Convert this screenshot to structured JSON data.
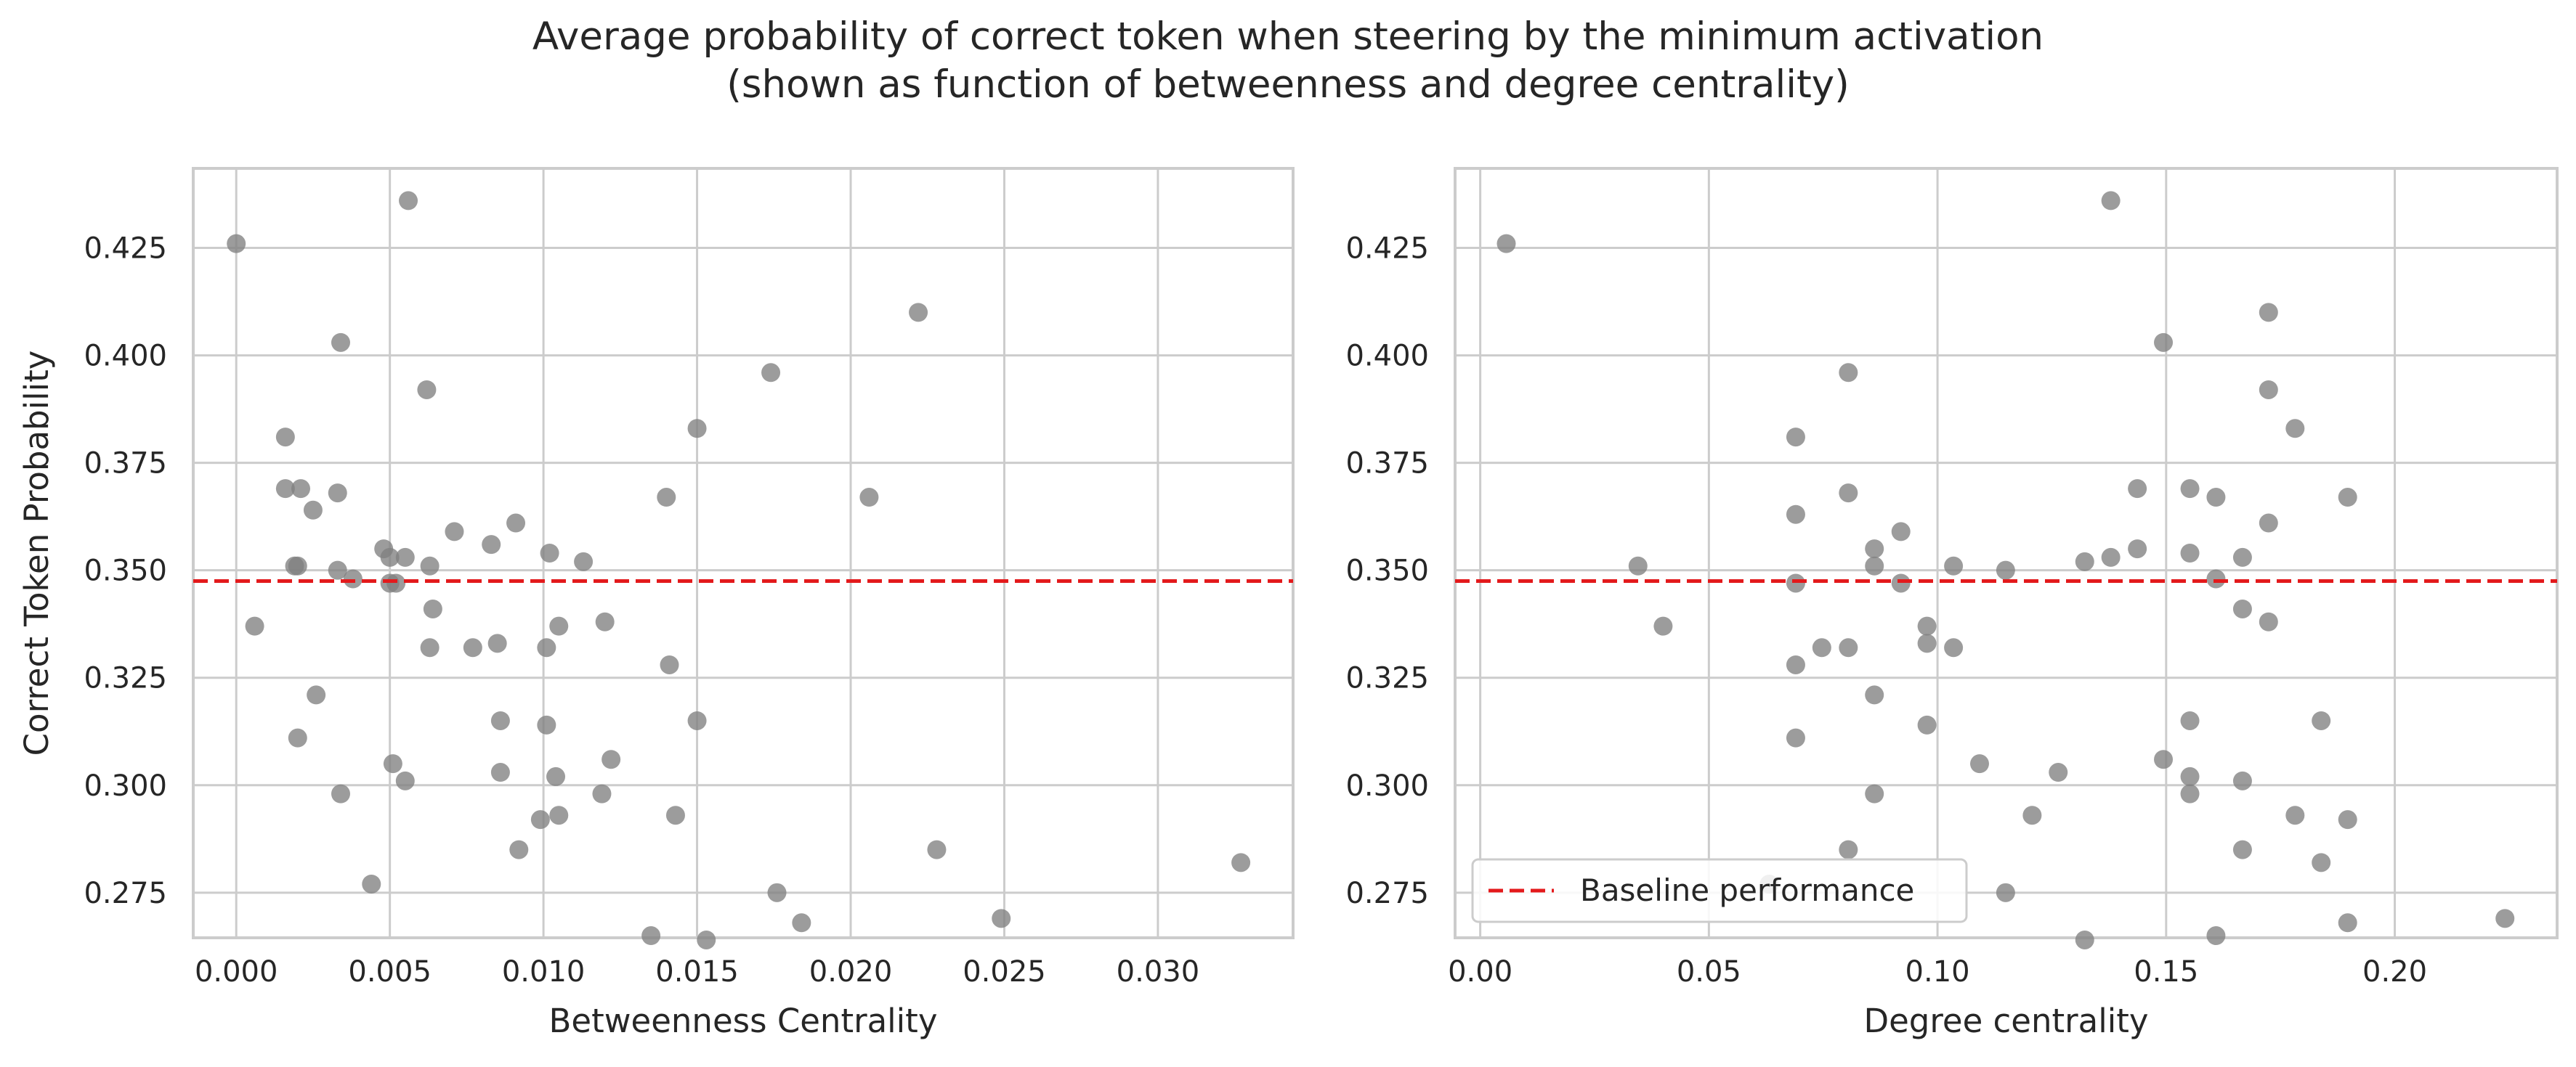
{
  "figure": {
    "title_line1": "Average probability of correct token when steering by the minimum activation",
    "title_line2": "(shown as function of betweenness and degree centrality)"
  },
  "colors": {
    "points": "#808080",
    "baseline": "#e31a1c",
    "grid": "#cccccc",
    "frame": "#cccccc"
  },
  "chart_data": [
    {
      "type": "scatter",
      "xlabel": "Betweenness Centrality",
      "ylabel": "Correct Token Probability",
      "xlim": [
        -0.0014,
        0.0344
      ],
      "ylim": [
        0.2645,
        0.4435
      ],
      "xticks": [
        "0.000",
        "0.005",
        "0.010",
        "0.015",
        "0.020",
        "0.025",
        "0.030"
      ],
      "xtick_values": [
        0.0,
        0.005,
        0.01,
        0.015,
        0.02,
        0.025,
        0.03
      ],
      "yticks": [
        "0.275",
        "0.300",
        "0.325",
        "0.350",
        "0.375",
        "0.400",
        "0.425"
      ],
      "ytick_values": [
        0.275,
        0.3,
        0.325,
        0.35,
        0.375,
        0.4,
        0.425
      ],
      "grid": true,
      "baseline": 0.3475,
      "points": [
        {
          "x": 0.0,
          "y": 0.426
        },
        {
          "x": 0.0006,
          "y": 0.337
        },
        {
          "x": 0.0016,
          "y": 0.381
        },
        {
          "x": 0.0016,
          "y": 0.369
        },
        {
          "x": 0.0019,
          "y": 0.351
        },
        {
          "x": 0.002,
          "y": 0.351
        },
        {
          "x": 0.0021,
          "y": 0.369
        },
        {
          "x": 0.002,
          "y": 0.311
        },
        {
          "x": 0.0025,
          "y": 0.364
        },
        {
          "x": 0.0026,
          "y": 0.321
        },
        {
          "x": 0.0033,
          "y": 0.368
        },
        {
          "x": 0.0033,
          "y": 0.35
        },
        {
          "x": 0.0034,
          "y": 0.403
        },
        {
          "x": 0.0034,
          "y": 0.298
        },
        {
          "x": 0.0038,
          "y": 0.348
        },
        {
          "x": 0.0044,
          "y": 0.277
        },
        {
          "x": 0.0048,
          "y": 0.355
        },
        {
          "x": 0.005,
          "y": 0.353
        },
        {
          "x": 0.005,
          "y": 0.347
        },
        {
          "x": 0.0052,
          "y": 0.347
        },
        {
          "x": 0.0051,
          "y": 0.305
        },
        {
          "x": 0.0055,
          "y": 0.353
        },
        {
          "x": 0.0055,
          "y": 0.301
        },
        {
          "x": 0.0056,
          "y": 0.436
        },
        {
          "x": 0.0062,
          "y": 0.392
        },
        {
          "x": 0.0063,
          "y": 0.351
        },
        {
          "x": 0.0064,
          "y": 0.341
        },
        {
          "x": 0.0063,
          "y": 0.332
        },
        {
          "x": 0.0071,
          "y": 0.359
        },
        {
          "x": 0.0077,
          "y": 0.332
        },
        {
          "x": 0.0083,
          "y": 0.356
        },
        {
          "x": 0.0085,
          "y": 0.333
        },
        {
          "x": 0.0086,
          "y": 0.315
        },
        {
          "x": 0.0086,
          "y": 0.303
        },
        {
          "x": 0.0091,
          "y": 0.361
        },
        {
          "x": 0.0092,
          "y": 0.285
        },
        {
          "x": 0.0099,
          "y": 0.292
        },
        {
          "x": 0.0101,
          "y": 0.332
        },
        {
          "x": 0.0101,
          "y": 0.314
        },
        {
          "x": 0.0102,
          "y": 0.354
        },
        {
          "x": 0.0104,
          "y": 0.302
        },
        {
          "x": 0.0105,
          "y": 0.337
        },
        {
          "x": 0.0105,
          "y": 0.293
        },
        {
          "x": 0.0113,
          "y": 0.352
        },
        {
          "x": 0.0119,
          "y": 0.298
        },
        {
          "x": 0.012,
          "y": 0.338
        },
        {
          "x": 0.0122,
          "y": 0.306
        },
        {
          "x": 0.0135,
          "y": 0.265
        },
        {
          "x": 0.014,
          "y": 0.367
        },
        {
          "x": 0.0141,
          "y": 0.328
        },
        {
          "x": 0.0143,
          "y": 0.293
        },
        {
          "x": 0.015,
          "y": 0.383
        },
        {
          "x": 0.015,
          "y": 0.315
        },
        {
          "x": 0.0153,
          "y": 0.264
        },
        {
          "x": 0.0174,
          "y": 0.396
        },
        {
          "x": 0.0176,
          "y": 0.275
        },
        {
          "x": 0.0184,
          "y": 0.268
        },
        {
          "x": 0.0206,
          "y": 0.367
        },
        {
          "x": 0.0222,
          "y": 0.41
        },
        {
          "x": 0.0228,
          "y": 0.285
        },
        {
          "x": 0.0249,
          "y": 0.269
        },
        {
          "x": 0.0327,
          "y": 0.282
        }
      ]
    },
    {
      "type": "scatter",
      "xlabel": "Degree centrality",
      "ylabel": "",
      "xlim": [
        -0.0055,
        0.2355
      ],
      "ylim": [
        0.2645,
        0.4435
      ],
      "xticks": [
        "0.00",
        "0.05",
        "0.10",
        "0.15",
        "0.20"
      ],
      "xtick_values": [
        0.0,
        0.05,
        0.1,
        0.15,
        0.2
      ],
      "yticks": [
        "0.275",
        "0.300",
        "0.325",
        "0.350",
        "0.375",
        "0.400",
        "0.425"
      ],
      "ytick_values": [
        0.275,
        0.3,
        0.325,
        0.35,
        0.375,
        0.4,
        0.425
      ],
      "grid": true,
      "baseline": 0.3475,
      "legend": {
        "label": "Baseline performance",
        "placement": "lower-left"
      },
      "points": [
        {
          "x": 0.0057,
          "y": 0.426
        },
        {
          "x": 0.0345,
          "y": 0.351
        },
        {
          "x": 0.04,
          "y": 0.337
        },
        {
          "x": 0.0632,
          "y": 0.277
        },
        {
          "x": 0.069,
          "y": 0.381
        },
        {
          "x": 0.069,
          "y": 0.363
        },
        {
          "x": 0.069,
          "y": 0.347
        },
        {
          "x": 0.069,
          "y": 0.328
        },
        {
          "x": 0.069,
          "y": 0.311
        },
        {
          "x": 0.0747,
          "y": 0.332
        },
        {
          "x": 0.0805,
          "y": 0.396
        },
        {
          "x": 0.0805,
          "y": 0.368
        },
        {
          "x": 0.0805,
          "y": 0.332
        },
        {
          "x": 0.0805,
          "y": 0.285
        },
        {
          "x": 0.0862,
          "y": 0.355
        },
        {
          "x": 0.0862,
          "y": 0.351
        },
        {
          "x": 0.0862,
          "y": 0.321
        },
        {
          "x": 0.0862,
          "y": 0.298
        },
        {
          "x": 0.092,
          "y": 0.359
        },
        {
          "x": 0.092,
          "y": 0.347
        },
        {
          "x": 0.0977,
          "y": 0.337
        },
        {
          "x": 0.0977,
          "y": 0.333
        },
        {
          "x": 0.0977,
          "y": 0.314
        },
        {
          "x": 0.1035,
          "y": 0.351
        },
        {
          "x": 0.1035,
          "y": 0.332
        },
        {
          "x": 0.1092,
          "y": 0.305
        },
        {
          "x": 0.1149,
          "y": 0.35
        },
        {
          "x": 0.1149,
          "y": 0.275
        },
        {
          "x": 0.1207,
          "y": 0.293
        },
        {
          "x": 0.1264,
          "y": 0.303
        },
        {
          "x": 0.1322,
          "y": 0.352
        },
        {
          "x": 0.1322,
          "y": 0.264
        },
        {
          "x": 0.1379,
          "y": 0.353
        },
        {
          "x": 0.1379,
          "y": 0.436
        },
        {
          "x": 0.1437,
          "y": 0.369
        },
        {
          "x": 0.1437,
          "y": 0.355
        },
        {
          "x": 0.1494,
          "y": 0.403
        },
        {
          "x": 0.1494,
          "y": 0.306
        },
        {
          "x": 0.1552,
          "y": 0.369
        },
        {
          "x": 0.1552,
          "y": 0.354
        },
        {
          "x": 0.1552,
          "y": 0.315
        },
        {
          "x": 0.1552,
          "y": 0.302
        },
        {
          "x": 0.1552,
          "y": 0.298
        },
        {
          "x": 0.1609,
          "y": 0.367
        },
        {
          "x": 0.1609,
          "y": 0.348
        },
        {
          "x": 0.1609,
          "y": 0.265
        },
        {
          "x": 0.1667,
          "y": 0.353
        },
        {
          "x": 0.1667,
          "y": 0.341
        },
        {
          "x": 0.1667,
          "y": 0.301
        },
        {
          "x": 0.1667,
          "y": 0.285
        },
        {
          "x": 0.1724,
          "y": 0.41
        },
        {
          "x": 0.1724,
          "y": 0.392
        },
        {
          "x": 0.1724,
          "y": 0.361
        },
        {
          "x": 0.1724,
          "y": 0.338
        },
        {
          "x": 0.1782,
          "y": 0.383
        },
        {
          "x": 0.1782,
          "y": 0.293
        },
        {
          "x": 0.1839,
          "y": 0.315
        },
        {
          "x": 0.1839,
          "y": 0.282
        },
        {
          "x": 0.1897,
          "y": 0.367
        },
        {
          "x": 0.1897,
          "y": 0.292
        },
        {
          "x": 0.1897,
          "y": 0.268
        },
        {
          "x": 0.2241,
          "y": 0.269
        }
      ]
    }
  ]
}
